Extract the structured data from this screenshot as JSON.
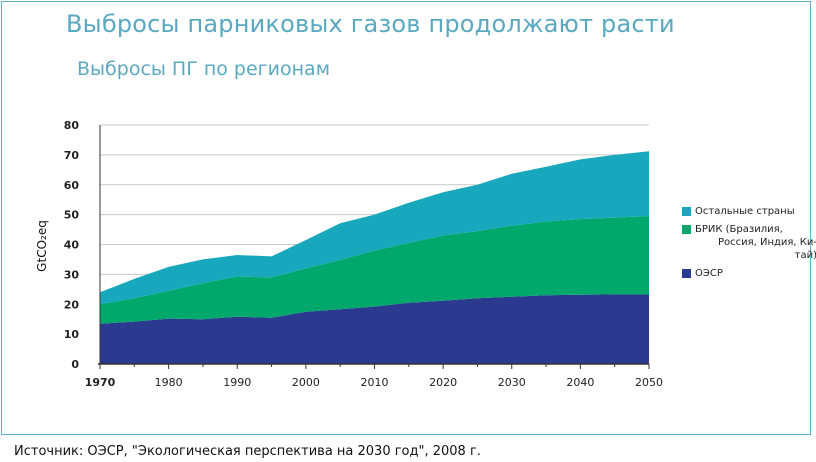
{
  "title": "Выбросы парниковых газов продолжают расти",
  "subtitle": "Выбросы ПГ по регионам",
  "source": "Источник: ОЭСР, \"Экологическая перспектива на 2030 год\", 2008 г.",
  "chart_data": {
    "type": "area",
    "stacked": true,
    "ylabel": "GtCO₂eq",
    "ylim": [
      0,
      80
    ],
    "yticks": [
      0,
      10,
      20,
      30,
      40,
      50,
      60,
      70,
      80
    ],
    "xlim": [
      1970,
      2050
    ],
    "xticks": [
      1970,
      1980,
      1990,
      2000,
      2010,
      2020,
      2030,
      2040,
      2050
    ],
    "grid": true,
    "legend_position": "right",
    "x": [
      1970,
      1975,
      1980,
      1985,
      1990,
      1995,
      2000,
      2005,
      2010,
      2015,
      2020,
      2025,
      2030,
      2035,
      2040,
      2045,
      2050
    ],
    "series": [
      {
        "name": "ОЭСР",
        "color": "#2b3a8f",
        "values": [
          13.5,
          14.2,
          15.2,
          15.0,
          15.8,
          15.5,
          17.5,
          18.3,
          19.2,
          20.5,
          21.2,
          22.0,
          22.5,
          23.0,
          23.2,
          23.3,
          23.3
        ]
      },
      {
        "name": "БРИК (Бразилия, Россия, Индия, Китай)",
        "legend_lines": [
          "БРИК (Бразилия,",
          "Россия, Индия, Ки-",
          "тай)"
        ],
        "color": "#00a86b",
        "values": [
          6.5,
          7.8,
          9.3,
          12.0,
          13.5,
          13.5,
          14.5,
          16.5,
          18.8,
          20.0,
          21.8,
          22.5,
          23.8,
          24.7,
          25.3,
          25.7,
          26.2
        ]
      },
      {
        "name": "Остальные страны",
        "color": "#17a8bd",
        "values": [
          4.0,
          6.5,
          8.0,
          8.0,
          7.2,
          7.0,
          9.5,
          12.3,
          12.0,
          13.5,
          14.5,
          15.5,
          17.4,
          18.3,
          20.0,
          21.0,
          21.7
        ]
      }
    ]
  },
  "legend_items": [
    {
      "label_lines": [
        "Остальные страны"
      ],
      "color": "#17a8bd"
    },
    {
      "label_lines": [
        "БРИК (Бразилия,",
        "Россия, Индия, Ки-",
        "тай)"
      ],
      "color": "#00a86b"
    },
    {
      "label_lines": [
        "ОЭСР"
      ],
      "color": "#2b3a8f"
    }
  ]
}
